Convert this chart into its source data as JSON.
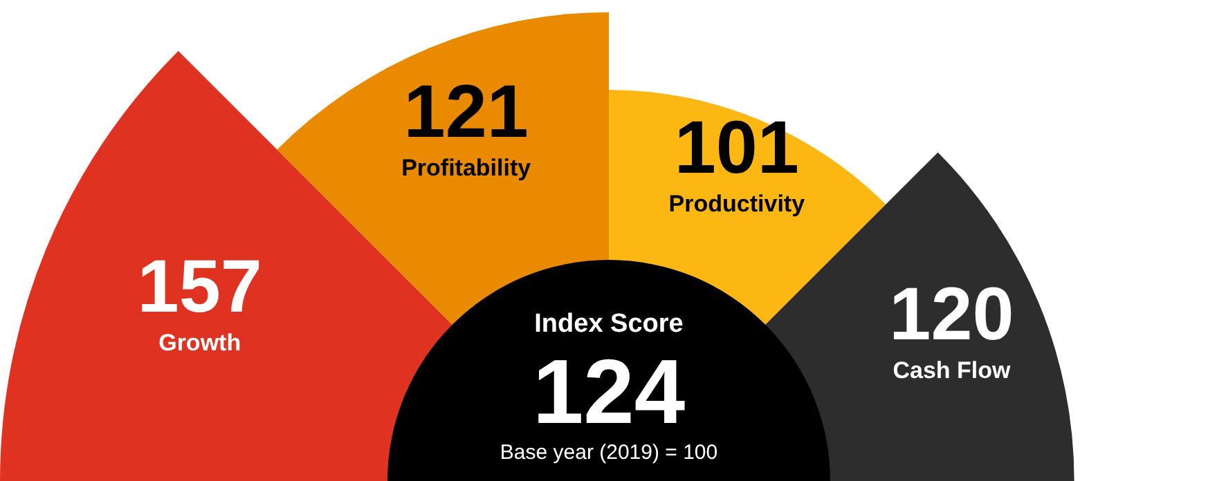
{
  "chart_data": {
    "type": "other",
    "categories": [
      "Growth",
      "Profitability",
      "Productivity",
      "Cash Flow"
    ],
    "values": [
      157,
      121,
      101,
      120
    ],
    "colors": [
      "#e03220",
      "#e98a00",
      "#fcb712",
      "#2d2d2d"
    ],
    "data_labels": true,
    "annotations": [
      "Index Score",
      "124",
      "Base year (2019) = 100"
    ]
  }
}
